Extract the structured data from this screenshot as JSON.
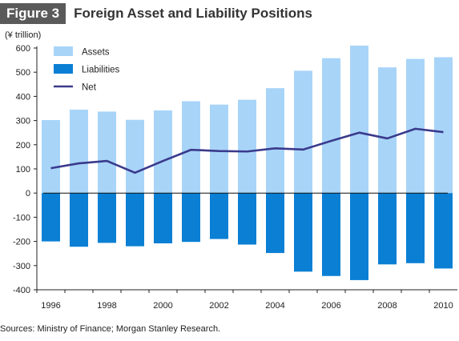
{
  "figure": {
    "badge": "Figure 3",
    "title": "Foreign Asset and Liability Positions",
    "unit": "(¥ trillion)",
    "source": "Sources: Ministry of Finance; Morgan Stanley Research."
  },
  "colors": {
    "assets": "#a8d4f8",
    "liabilities": "#0a7fd4",
    "net": "#3a3a8c",
    "badge_bg": "#5a5a5a"
  },
  "chart_data": {
    "type": "bar",
    "categories": [
      "1996",
      "1997",
      "1998",
      "1999",
      "2000",
      "2001",
      "2002",
      "2003",
      "2004",
      "2005",
      "2006",
      "2007",
      "2008",
      "2009",
      "2010"
    ],
    "x_tick_labels": [
      "1996",
      "1998",
      "2000",
      "2002",
      "2004",
      "2006",
      "2008",
      "2010"
    ],
    "series": [
      {
        "name": "Assets",
        "type": "bar",
        "values": [
          302,
          345,
          337,
          303,
          342,
          380,
          366,
          386,
          434,
          506,
          558,
          610,
          520,
          555,
          562
        ]
      },
      {
        "name": "Liabilities",
        "type": "bar",
        "values": [
          -200,
          -222,
          -206,
          -220,
          -208,
          -202,
          -190,
          -213,
          -248,
          -325,
          -343,
          -360,
          -295,
          -290,
          -312
        ]
      },
      {
        "name": "Net",
        "type": "line",
        "values": [
          103,
          123,
          133,
          84,
          133,
          179,
          174,
          172,
          185,
          180,
          216,
          250,
          226,
          266,
          252
        ]
      }
    ],
    "ylim": [
      -400,
      600
    ],
    "y_ticks": [
      -400,
      -300,
      -200,
      -100,
      0,
      100,
      200,
      300,
      400,
      500,
      600
    ],
    "legend": {
      "position": "top-left",
      "entries": [
        "Assets",
        "Liabilities",
        "Net"
      ]
    },
    "grid": false
  }
}
